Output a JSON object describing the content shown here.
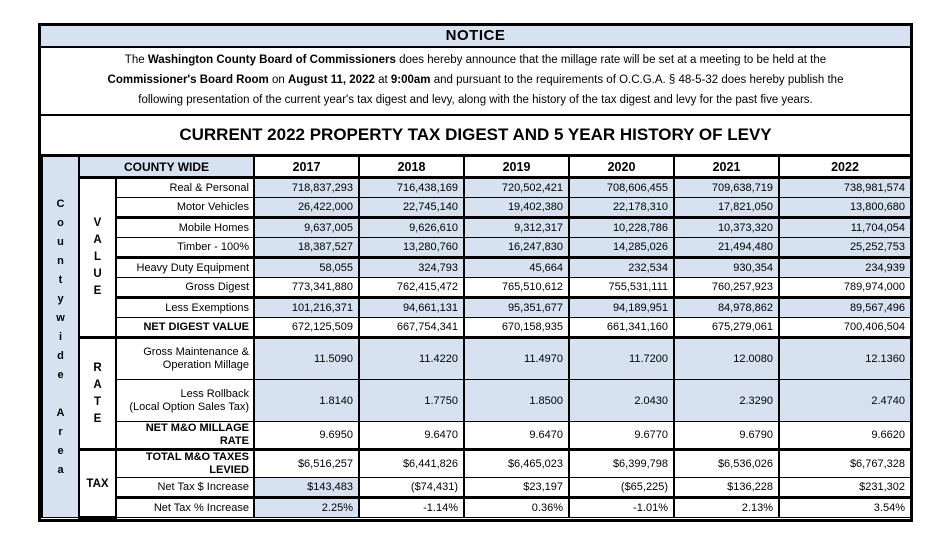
{
  "colors": {
    "shade": "#d6e2f0",
    "border": "#000000"
  },
  "notice": {
    "title": "NOTICE",
    "paragraph_lines": [
      [
        {
          "t": "The ",
          "b": false
        },
        {
          "t": "Washington County Board of Commissioners",
          "b": true
        },
        {
          "t": " does hereby announce that the millage rate will be set at a meeting to be held at the",
          "b": false
        }
      ],
      [
        {
          "t": "Commissioner's Board Room",
          "b": true
        },
        {
          "t": " on ",
          "b": false
        },
        {
          "t": "August 11, 2022",
          "b": true
        },
        {
          "t": " at ",
          "b": false
        },
        {
          "t": "9:00am",
          "b": true
        },
        {
          "t": " and pursuant to the requirements of O.C.G.A. § 48-5-32 does hereby publish the",
          "b": false
        }
      ],
      [
        {
          "t": "following presentation of the current year's tax digest and levy, along with the history of the tax digest and levy for the past five years.",
          "b": false
        }
      ]
    ]
  },
  "title": "CURRENT 2022 PROPERTY TAX DIGEST AND 5 YEAR HISTORY OF LEVY",
  "table": {
    "area_words": [
      "Countywide",
      "Area"
    ],
    "header_label": "COUNTY WIDE",
    "years": [
      "2017",
      "2018",
      "2019",
      "2020",
      "2021",
      "2022"
    ],
    "groups": [
      {
        "label": "VALUE",
        "orientation": "vertical",
        "rows": [
          {
            "label": "Real & Personal",
            "bold": false,
            "shade": "all",
            "thick_bottom": false,
            "tall": false,
            "values": [
              "718,837,293",
              "716,438,169",
              "720,502,421",
              "708,606,455",
              "709,638,719",
              "738,981,574"
            ]
          },
          {
            "label": "Motor Vehicles",
            "bold": false,
            "shade": "all",
            "thick_bottom": true,
            "tall": false,
            "values": [
              "26,422,000",
              "22,745,140",
              "19,402,380",
              "22,178,310",
              "17,821,050",
              "13,800,680"
            ]
          },
          {
            "label": "Mobile Homes",
            "bold": false,
            "shade": "all",
            "thick_bottom": false,
            "tall": false,
            "values": [
              "9,637,005",
              "9,626,610",
              "9,312,317",
              "10,228,786",
              "10,373,320",
              "11,704,054"
            ]
          },
          {
            "label": "Timber - 100%",
            "bold": false,
            "shade": "all",
            "thick_bottom": true,
            "tall": false,
            "values": [
              "18,387,527",
              "13,280,760",
              "16,247,830",
              "14,285,026",
              "21,494,480",
              "25,252,753"
            ]
          },
          {
            "label": "Heavy Duty Equipment",
            "bold": false,
            "shade": "all",
            "thick_bottom": false,
            "tall": false,
            "values": [
              "58,055",
              "324,793",
              "45,664",
              "232,534",
              "930,354",
              "234,939"
            ]
          },
          {
            "label": "Gross Digest",
            "bold": false,
            "shade": "none",
            "thick_bottom": true,
            "tall": false,
            "values": [
              "773,341,880",
              "762,415,472",
              "765,510,612",
              "755,531,111",
              "760,257,923",
              "789,974,000"
            ]
          },
          {
            "label": "Less Exemptions",
            "bold": false,
            "shade": "all",
            "thick_bottom": false,
            "tall": false,
            "values": [
              "101,216,371",
              "94,661,131",
              "95,351,677",
              "94,189,951",
              "84,978,862",
              "89,567,496"
            ]
          },
          {
            "label": "NET DIGEST VALUE",
            "bold": true,
            "shade": "none",
            "thick_bottom": true,
            "tall": false,
            "values": [
              "672,125,509",
              "667,754,341",
              "670,158,935",
              "661,341,160",
              "675,279,061",
              "700,406,504"
            ]
          }
        ]
      },
      {
        "label": "RATE",
        "orientation": "vertical",
        "rows": [
          {
            "label": "Gross Maintenance & Operation Millage",
            "label_lines": [
              "Gross Maintenance &",
              "Operation Millage"
            ],
            "bold": false,
            "shade": "all",
            "thick_bottom": false,
            "tall": true,
            "values": [
              "11.5090",
              "11.4220",
              "11.4970",
              "11.7200",
              "12.0080",
              "12.1360"
            ]
          },
          {
            "label": "Less Rollback (Local Option Sales Tax)",
            "label_lines": [
              "Less Rollback",
              "(Local Option Sales Tax)"
            ],
            "bold": false,
            "shade": "all",
            "thick_bottom": false,
            "tall": true,
            "values": [
              "1.8140",
              "1.7750",
              "1.8500",
              "2.0430",
              "2.3290",
              "2.4740"
            ]
          },
          {
            "label": "NET M&O MILLAGE RATE",
            "bold": true,
            "shade": "none",
            "thick_bottom": true,
            "tall": false,
            "values": [
              "9.6950",
              "9.6470",
              "9.6470",
              "9.6770",
              "9.6790",
              "9.6620"
            ]
          }
        ]
      },
      {
        "label": "TAX",
        "orientation": "horizontal",
        "rows": [
          {
            "label": "TOTAL M&O TAXES LEVIED",
            "bold": true,
            "shade": "none",
            "thick_bottom": false,
            "tall": false,
            "values": [
              "$6,516,257",
              "$6,441,826",
              "$6,465,023",
              "$6,399,798",
              "$6,536,026",
              "$6,767,328"
            ]
          },
          {
            "label": "Net Tax $ Increase",
            "bold": false,
            "shade": "first",
            "thick_bottom": true,
            "tall": false,
            "values": [
              "$143,483",
              "($74,431)",
              "$23,197",
              "($65,225)",
              "$136,228",
              "$231,302"
            ]
          },
          {
            "label": "Net Tax % Increase",
            "bold": false,
            "shade": "first",
            "thick_bottom": false,
            "tall": false,
            "values": [
              "2.25%",
              "-1.14%",
              "0.36%",
              "-1.01%",
              "2.13%",
              "3.54%"
            ]
          }
        ]
      }
    ]
  }
}
